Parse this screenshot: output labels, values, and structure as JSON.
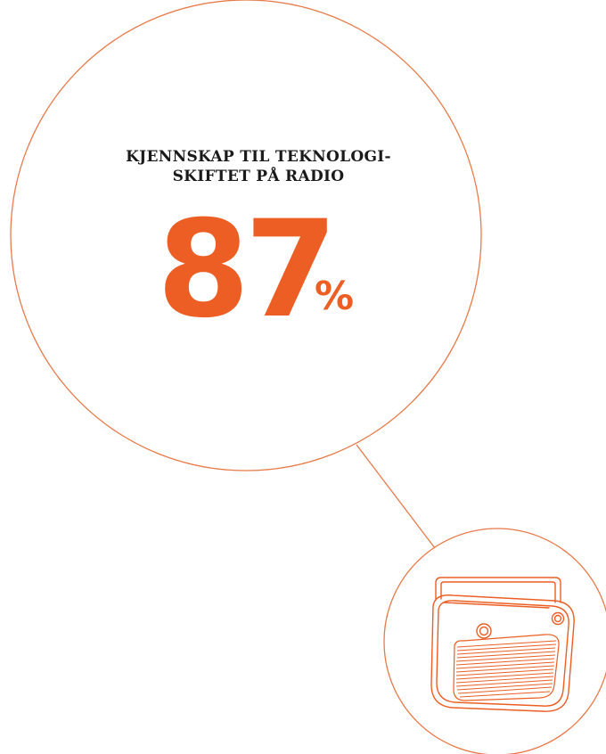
{
  "heading": {
    "line1": "KJENNSKAP TIL TEKNOLOGI-",
    "line2": "SKIFTET PÅ RADIO"
  },
  "stat": {
    "value": "87",
    "unit": "%"
  },
  "colors": {
    "accent": "#ec5e24",
    "text": "#1a1a1a",
    "line": "#e87a4a",
    "icon_stroke": "#ec5e24"
  },
  "icons": {
    "radio": "radio-icon"
  }
}
